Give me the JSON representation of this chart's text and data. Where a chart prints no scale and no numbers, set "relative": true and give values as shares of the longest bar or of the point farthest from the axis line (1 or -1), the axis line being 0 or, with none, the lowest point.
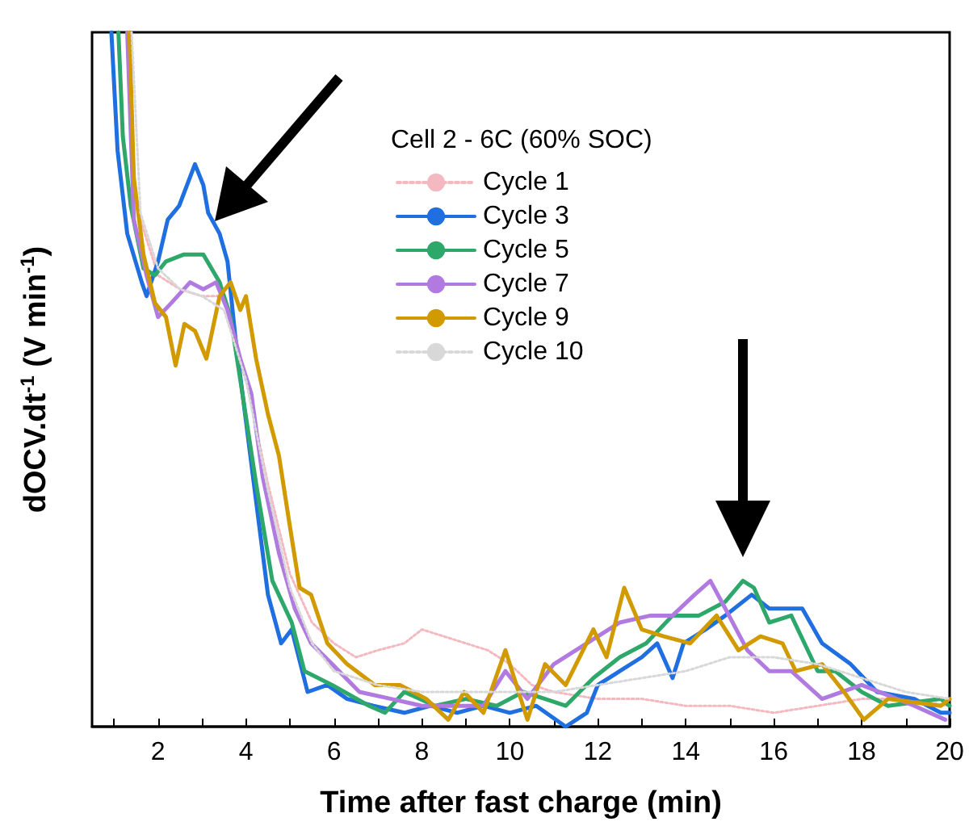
{
  "chart_data": {
    "type": "line",
    "relative": true,
    "xlabel": "Time after fast charge (min)",
    "ylabel": "dOCV.dt$^{-1}$ (V min$^{-1}$)",
    "legend_title": "Cell 2 - 6C (60% SOC)",
    "legend": "top",
    "grid": false,
    "marker": "none",
    "xlim": [
      0.5,
      20
    ],
    "xticks": [
      {
        "value": 1,
        "label": null
      },
      2,
      {
        "value": 3,
        "label": null
      },
      4,
      {
        "value": 5,
        "label": null
      },
      6,
      {
        "value": 7,
        "label": null
      },
      8,
      {
        "value": 9,
        "label": null
      },
      10,
      {
        "value": 11,
        "label": null
      },
      12,
      {
        "value": 13,
        "label": null
      },
      14,
      {
        "value": 15,
        "label": null
      },
      16,
      {
        "value": 17,
        "label": null
      },
      18,
      {
        "value": 19,
        "label": null
      },
      20
    ],
    "series": [
      {
        "name": "Cycle 1",
        "color": "#f4b8c0",
        "line_style": "dotted",
        "x": [
          1.3,
          1.5,
          2.0,
          2.5,
          3.0,
          3.5,
          4.0,
          4.5,
          5.0,
          5.5,
          6.0,
          6.5,
          7.0,
          7.6,
          8.0,
          8.5,
          9.0,
          9.5,
          10.0,
          10.5,
          11.0,
          12.0,
          13.0,
          14.0,
          15.0,
          16.0,
          17.0,
          18.0,
          19.0,
          20.0
        ],
        "values": [
          1.0,
          0.75,
          0.65,
          0.63,
          0.62,
          0.62,
          0.5,
          0.35,
          0.22,
          0.15,
          0.12,
          0.1,
          0.11,
          0.12,
          0.14,
          0.13,
          0.12,
          0.11,
          0.09,
          0.06,
          0.05,
          0.04,
          0.04,
          0.03,
          0.03,
          0.02,
          0.03,
          0.04,
          0.04,
          0.03
        ]
      },
      {
        "name": "Cycle 3",
        "color": "#1f6fe0",
        "x": [
          0.94,
          1.08,
          1.3,
          1.63,
          1.74,
          2.0,
          2.22,
          2.48,
          2.84,
          3.03,
          3.14,
          3.4,
          3.58,
          3.76,
          4.0,
          4.3,
          4.5,
          4.8,
          5.04,
          5.4,
          5.85,
          6.3,
          6.9,
          7.6,
          8.2,
          8.8,
          9.4,
          10.0,
          10.6,
          11.27,
          11.75,
          12.0,
          12.5,
          13.0,
          13.35,
          13.7,
          13.95,
          14.45,
          14.9,
          15.5,
          15.9,
          16.65,
          17.1,
          17.75,
          18.35,
          19.2,
          19.8,
          20.0
        ],
        "values": [
          1.0,
          0.83,
          0.71,
          0.64,
          0.62,
          0.67,
          0.73,
          0.75,
          0.81,
          0.78,
          0.74,
          0.71,
          0.67,
          0.56,
          0.44,
          0.29,
          0.19,
          0.12,
          0.14,
          0.05,
          0.06,
          0.04,
          0.03,
          0.02,
          0.03,
          0.02,
          0.03,
          0.02,
          0.03,
          0.0,
          0.02,
          0.06,
          0.08,
          0.1,
          0.12,
          0.07,
          0.12,
          0.14,
          0.16,
          0.19,
          0.17,
          0.17,
          0.12,
          0.09,
          0.05,
          0.04,
          0.02,
          0.02
        ]
      },
      {
        "name": "Cycle 5",
        "color": "#2ea86a",
        "x": [
          1.1,
          1.2,
          1.38,
          1.67,
          1.93,
          2.18,
          2.59,
          3.03,
          3.4,
          3.65,
          3.87,
          4.23,
          4.6,
          5.04,
          5.33,
          5.96,
          6.8,
          7.16,
          7.6,
          8.3,
          9.0,
          9.7,
          10.3,
          10.8,
          11.27,
          11.9,
          12.5,
          13.1,
          13.7,
          14.3,
          14.9,
          15.3,
          15.55,
          15.9,
          16.4,
          17.0,
          17.4,
          18.0,
          18.6,
          19.8,
          20.0
        ],
        "values": [
          1.0,
          0.85,
          0.75,
          0.66,
          0.65,
          0.67,
          0.68,
          0.68,
          0.64,
          0.59,
          0.5,
          0.35,
          0.21,
          0.15,
          0.08,
          0.06,
          0.03,
          0.02,
          0.05,
          0.03,
          0.04,
          0.03,
          0.05,
          0.04,
          0.03,
          0.07,
          0.1,
          0.12,
          0.16,
          0.16,
          0.18,
          0.21,
          0.2,
          0.15,
          0.16,
          0.08,
          0.08,
          0.05,
          0.03,
          0.04,
          0.03
        ]
      },
      {
        "name": "Cycle 7",
        "color": "#b07ae0",
        "x": [
          1.3,
          1.45,
          1.74,
          2.0,
          2.3,
          2.73,
          3.03,
          3.32,
          3.58,
          3.87,
          4.12,
          4.38,
          4.75,
          5.11,
          5.48,
          5.96,
          6.58,
          7.3,
          8.0,
          8.7,
          9.4,
          9.9,
          10.4,
          11.0,
          11.5,
          12.5,
          13.2,
          13.7,
          14.2,
          14.56,
          14.9,
          15.4,
          15.9,
          16.4,
          17.1,
          18.0,
          19.2,
          19.9
        ],
        "values": [
          1.0,
          0.73,
          0.65,
          0.59,
          0.61,
          0.64,
          0.63,
          0.64,
          0.6,
          0.53,
          0.48,
          0.36,
          0.25,
          0.17,
          0.12,
          0.09,
          0.05,
          0.04,
          0.03,
          0.03,
          0.03,
          0.08,
          0.04,
          0.09,
          0.11,
          0.15,
          0.16,
          0.16,
          0.19,
          0.21,
          0.17,
          0.11,
          0.08,
          0.08,
          0.04,
          0.06,
          0.03,
          0.01
        ]
      },
      {
        "name": "Cycle 9",
        "color": "#d09a00",
        "x": [
          1.35,
          1.45,
          1.67,
          1.93,
          2.18,
          2.4,
          2.6,
          2.84,
          3.1,
          3.4,
          3.65,
          3.87,
          4.0,
          4.23,
          4.5,
          4.75,
          4.97,
          5.22,
          5.48,
          5.85,
          6.3,
          6.93,
          7.5,
          8.1,
          8.6,
          8.96,
          9.4,
          9.9,
          10.4,
          10.8,
          11.27,
          11.9,
          12.2,
          12.6,
          13.0,
          13.5,
          14.1,
          14.7,
          15.2,
          15.7,
          16.2,
          16.5,
          17.1,
          17.6,
          18.05,
          18.6,
          19.8,
          20.0
        ],
        "values": [
          1.0,
          0.79,
          0.68,
          0.61,
          0.59,
          0.52,
          0.58,
          0.57,
          0.53,
          0.62,
          0.64,
          0.6,
          0.62,
          0.53,
          0.45,
          0.39,
          0.3,
          0.2,
          0.19,
          0.12,
          0.09,
          0.06,
          0.06,
          0.04,
          0.01,
          0.05,
          0.02,
          0.11,
          0.01,
          0.09,
          0.06,
          0.14,
          0.1,
          0.2,
          0.14,
          0.13,
          0.12,
          0.16,
          0.11,
          0.13,
          0.12,
          0.08,
          0.09,
          0.05,
          0.01,
          0.04,
          0.03,
          0.04
        ]
      },
      {
        "name": "Cycle 10",
        "color": "#d8d8d8",
        "line_style": "dotted",
        "x": [
          1.4,
          1.6,
          2.0,
          2.5,
          3.0,
          3.5,
          4.0,
          4.5,
          5.0,
          5.5,
          6.0,
          7.0,
          8.0,
          9.0,
          10.0,
          11.0,
          12.0,
          13.0,
          14.0,
          15.0,
          16.0,
          17.0,
          18.0,
          19.0,
          20.0
        ],
        "values": [
          1.0,
          0.74,
          0.66,
          0.63,
          0.62,
          0.6,
          0.5,
          0.34,
          0.2,
          0.12,
          0.08,
          0.06,
          0.05,
          0.05,
          0.05,
          0.05,
          0.06,
          0.07,
          0.08,
          0.1,
          0.1,
          0.09,
          0.07,
          0.05,
          0.04
        ]
      }
    ]
  }
}
